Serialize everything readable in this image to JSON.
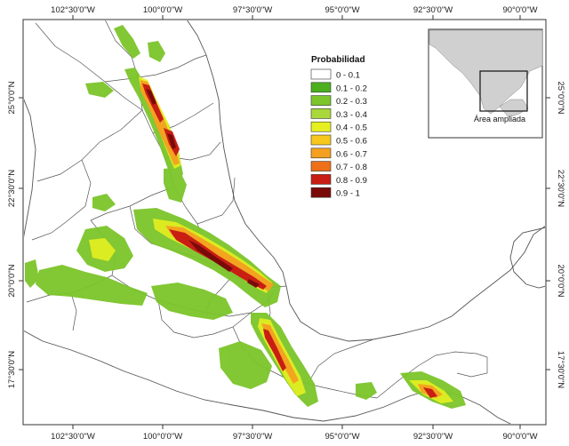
{
  "map": {
    "top_ticks": [
      "102°30'0\"W",
      "100°0'0\"W",
      "97°30'0\"W",
      "95°0'0\"W",
      "92°30'0\"W",
      "90°0'0\"W"
    ],
    "bottom_ticks": [
      "102°30'0\"W",
      "100°0'0\"W",
      "97°30'0\"W",
      "95°0'0\"W",
      "92°30'0\"W",
      "90°0'0\"W"
    ],
    "left_ticks": [
      "25°0'0\"N",
      "22°30'0\"N",
      "20°0'0\"N",
      "17°30'0\"N"
    ],
    "right_ticks": [
      "25°0'0\"N",
      "22°30'0\"N",
      "20°0'0\"N",
      "17°30'0\"N"
    ]
  },
  "legend": {
    "title": "Probabilidad",
    "classes": [
      {
        "label": "0 - 0.1",
        "color": "#ffffff"
      },
      {
        "label": "0.1 - 0.2",
        "color": "#4caf1e"
      },
      {
        "label": "0.2 - 0.3",
        "color": "#7cc52a"
      },
      {
        "label": "0.3 - 0.4",
        "color": "#a8d83a"
      },
      {
        "label": "0.4 - 0.5",
        "color": "#e6f020"
      },
      {
        "label": "0.5 - 0.6",
        "color": "#f6c81e"
      },
      {
        "label": "0.6 - 0.7",
        "color": "#f4a020"
      },
      {
        "label": "0.7 - 0.8",
        "color": "#ee7018"
      },
      {
        "label": "0.8 - 0.9",
        "color": "#c81e14"
      },
      {
        "label": "0.9 - 1",
        "color": "#7a0a0a"
      }
    ]
  },
  "inset": {
    "caption": "Área ampliada"
  },
  "colors": {
    "land_fill": "#ffffff",
    "border": "#555555",
    "frame": "#333333",
    "inset_land": "#d0d0d0"
  }
}
